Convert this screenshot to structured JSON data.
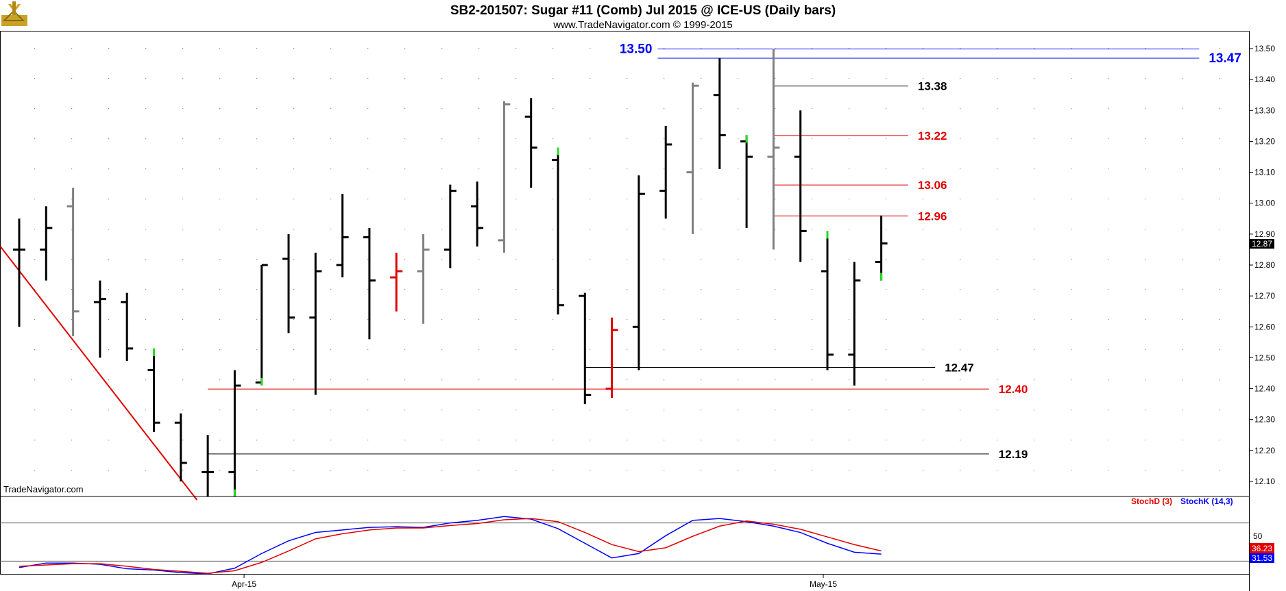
{
  "chart_data": {
    "type": "ohlc",
    "title": "SB2-201507:  Sugar #11 (Comb) Jul 2015 @ ICE-US  (Daily bars)",
    "subtitle": "www.TradeNavigator.com © 1999-2015",
    "watermark": "TradeNavigator.com",
    "price_axis": {
      "ylim": [
        12.04,
        13.55
      ],
      "ticks": [
        "12.10",
        "12.20",
        "12.30",
        "12.40",
        "12.50",
        "12.60",
        "12.70",
        "12.80",
        "12.90",
        "13.00",
        "13.10",
        "13.20",
        "13.30",
        "13.40",
        "13.50"
      ],
      "last_price": "12.87"
    },
    "x_labels": [
      {
        "label": "Apr-15",
        "bar": 8.5
      },
      {
        "label": "May-15",
        "bar": 30.0
      }
    ],
    "bars": [
      {
        "o": 12.85,
        "h": 12.95,
        "l": 12.6,
        "c": 12.85,
        "color": "#000000"
      },
      {
        "o": 12.85,
        "h": 12.99,
        "l": 12.75,
        "c": 12.92,
        "color": "#000000"
      },
      {
        "o": 12.99,
        "h": 13.05,
        "l": 12.57,
        "c": 12.65,
        "color": "#808080"
      },
      {
        "o": 12.68,
        "h": 12.75,
        "l": 12.5,
        "c": 12.69,
        "color": "#000000"
      },
      {
        "o": 12.68,
        "h": 12.71,
        "l": 12.49,
        "c": 12.53,
        "color": "#000000"
      },
      {
        "o": 12.46,
        "h": 12.53,
        "l": 12.26,
        "c": 12.29,
        "color": "#000000",
        "tip": "high"
      },
      {
        "o": 12.29,
        "h": 12.32,
        "l": 12.1,
        "c": 12.16,
        "color": "#000000"
      },
      {
        "o": 12.13,
        "h": 12.25,
        "l": 12.05,
        "c": 12.13,
        "color": "#000000"
      },
      {
        "o": 12.13,
        "h": 12.46,
        "l": 12.05,
        "c": 12.41,
        "color": "#000000",
        "tip": "low"
      },
      {
        "o": 12.42,
        "h": 12.8,
        "l": 12.41,
        "c": 12.8,
        "color": "#000000",
        "tip": "low"
      },
      {
        "o": 12.82,
        "h": 12.9,
        "l": 12.58,
        "c": 12.63,
        "color": "#000000"
      },
      {
        "o": 12.63,
        "h": 12.84,
        "l": 12.38,
        "c": 12.78,
        "color": "#000000"
      },
      {
        "o": 12.8,
        "h": 13.03,
        "l": 12.76,
        "c": 12.89,
        "color": "#000000"
      },
      {
        "o": 12.89,
        "h": 12.92,
        "l": 12.56,
        "c": 12.75,
        "color": "#000000"
      },
      {
        "o": 12.76,
        "h": 12.84,
        "l": 12.65,
        "c": 12.78,
        "color": "#e00000"
      },
      {
        "o": 12.78,
        "h": 12.9,
        "l": 12.61,
        "c": 12.85,
        "color": "#808080"
      },
      {
        "o": 12.85,
        "h": 13.06,
        "l": 12.79,
        "c": 13.04,
        "color": "#000000"
      },
      {
        "o": 12.99,
        "h": 13.07,
        "l": 12.86,
        "c": 12.92,
        "color": "#000000"
      },
      {
        "o": 12.88,
        "h": 13.33,
        "l": 12.84,
        "c": 13.32,
        "color": "#808080"
      },
      {
        "o": 13.28,
        "h": 13.34,
        "l": 13.05,
        "c": 13.18,
        "color": "#000000"
      },
      {
        "o": 13.14,
        "h": 13.18,
        "l": 12.64,
        "c": 12.67,
        "color": "#000000",
        "tip": "high"
      },
      {
        "o": 12.7,
        "h": 12.71,
        "l": 12.35,
        "c": 12.38,
        "color": "#000000"
      },
      {
        "o": 12.4,
        "h": 12.63,
        "l": 12.37,
        "c": 12.59,
        "color": "#e00000"
      },
      {
        "o": 12.6,
        "h": 13.09,
        "l": 12.46,
        "c": 13.03,
        "color": "#000000"
      },
      {
        "o": 13.04,
        "h": 13.25,
        "l": 12.95,
        "c": 13.19,
        "color": "#000000"
      },
      {
        "o": 13.1,
        "h": 13.39,
        "l": 12.9,
        "c": 13.38,
        "color": "#808080"
      },
      {
        "o": 13.35,
        "h": 13.47,
        "l": 13.11,
        "c": 13.22,
        "color": "#000000"
      },
      {
        "o": 13.2,
        "h": 13.22,
        "l": 12.92,
        "c": 13.15,
        "color": "#000000",
        "tip": "high"
      },
      {
        "o": 13.15,
        "h": 13.5,
        "l": 12.85,
        "c": 13.18,
        "color": "#808080"
      },
      {
        "o": 13.15,
        "h": 13.3,
        "l": 12.81,
        "c": 12.91,
        "color": "#000000"
      },
      {
        "o": 12.78,
        "h": 12.91,
        "l": 12.46,
        "c": 12.51,
        "color": "#000000",
        "tip": "high"
      },
      {
        "o": 12.51,
        "h": 12.81,
        "l": 12.41,
        "c": 12.75,
        "color": "#000000"
      },
      {
        "o": 12.81,
        "h": 12.96,
        "l": 12.75,
        "c": 12.87,
        "color": "#000000",
        "tip": "low"
      }
    ],
    "levels": [
      {
        "value": 13.5,
        "label": "13.50",
        "color": "#0000ff",
        "from": 23.7,
        "to": 43.8,
        "label_side": "left"
      },
      {
        "value": 13.47,
        "label": "13.47",
        "color": "#0000ff",
        "from": 23.7,
        "to": 43.8,
        "label_side": "right"
      },
      {
        "value": 13.38,
        "label": "13.38",
        "color": "#000000",
        "from": 28.0,
        "to": 33.0,
        "label_side": "right"
      },
      {
        "value": 13.22,
        "label": "13.22",
        "color": "#e00000",
        "from": 28.0,
        "to": 33.0,
        "label_side": "right"
      },
      {
        "value": 13.06,
        "label": "13.06",
        "color": "#e00000",
        "from": 28.0,
        "to": 33.0,
        "label_side": "right"
      },
      {
        "value": 12.96,
        "label": "12.96",
        "color": "#e00000",
        "from": 28.0,
        "to": 33.0,
        "label_side": "right"
      },
      {
        "value": 12.47,
        "label": "12.47",
        "color": "#000000",
        "from": 21.0,
        "to": 34.0,
        "label_side": "right"
      },
      {
        "value": 12.4,
        "label": "12.40",
        "color": "#e00000",
        "from": 7.0,
        "to": 36.0,
        "label_side": "right"
      },
      {
        "value": 12.19,
        "label": "12.19",
        "color": "#000000",
        "from": 7.0,
        "to": 36.0,
        "label_side": "right"
      }
    ],
    "trendline": {
      "color": "#e00000",
      "from": {
        "bar": -0.7,
        "value": 12.86
      },
      "to": {
        "bar": 6.6,
        "value": 12.04
      }
    },
    "stochastic": {
      "legend": [
        {
          "label": "StochD (3)",
          "color": "#e00000"
        },
        {
          "label": "StochK (14,3)",
          "color": "#0000ff"
        }
      ],
      "ylim": [
        0,
        100
      ],
      "level_lines": [
        80,
        20
      ],
      "tick_label": "50",
      "last_values": [
        "36.23",
        "31.53"
      ],
      "k_values": [
        10,
        17,
        17,
        15,
        8,
        6,
        2,
        0,
        9,
        32,
        52,
        65,
        69,
        73,
        74,
        73,
        80,
        84,
        90,
        86,
        71,
        48,
        25,
        32,
        60,
        84,
        87,
        82,
        75,
        65,
        48,
        34,
        31
      ],
      "d_values": [
        12,
        14,
        16,
        16,
        12,
        7,
        4,
        1,
        5,
        18,
        36,
        55,
        63,
        69,
        72,
        72,
        76,
        79,
        85,
        87,
        82,
        65,
        46,
        35,
        41,
        59,
        75,
        83,
        78,
        70,
        58,
        46,
        36
      ]
    }
  }
}
